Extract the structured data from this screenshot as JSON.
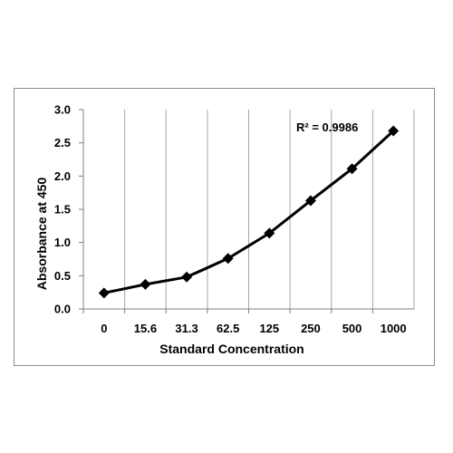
{
  "chart_data": {
    "type": "line",
    "categories": [
      "0",
      "15.6",
      "31.3",
      "62.5",
      "125",
      "250",
      "500",
      "1000"
    ],
    "series": [
      {
        "values": [
          0.24,
          0.37,
          0.48,
          0.76,
          1.14,
          1.63,
          2.11,
          2.68
        ]
      }
    ],
    "trendline": {
      "type": "polynomial",
      "r2_label": "R² = 0.9986"
    },
    "xlabel": "Standard Concentration",
    "ylabel": "Absorbance at 450",
    "ylim": [
      0,
      3
    ],
    "yticks": [
      "0.0",
      "0.5",
      "1.0",
      "1.5",
      "2.0",
      "2.5",
      "3.0"
    ],
    "grid": "vertical",
    "marker": "diamond",
    "colors": {
      "line": "#000000",
      "grid": "#a6a6a6",
      "axis": "#7f7f7f"
    }
  }
}
